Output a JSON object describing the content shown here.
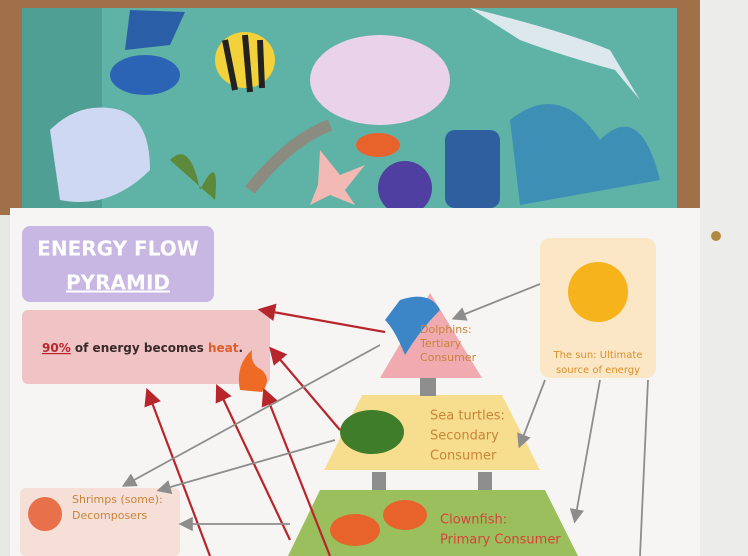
{
  "poster": {
    "title": [
      "ENERGY FLOW",
      "PYRAMID"
    ],
    "heat_note": {
      "percent": "90%",
      "middle": " of energy becomes ",
      "heat": "heat",
      "end": "."
    },
    "sun": [
      "The sun: Ultimate",
      "source of energy"
    ],
    "levels": [
      {
        "lines": [
          "Dolphins:",
          "Tertiary",
          "Consumer"
        ]
      },
      {
        "lines": [
          "Sea turtles:",
          "Secondary",
          "Consumer"
        ]
      },
      {
        "lines": [
          "Clownfish:",
          "Primary Consumer"
        ]
      }
    ],
    "decomposers": [
      "Shrimps (some):",
      "Decomposers"
    ]
  }
}
